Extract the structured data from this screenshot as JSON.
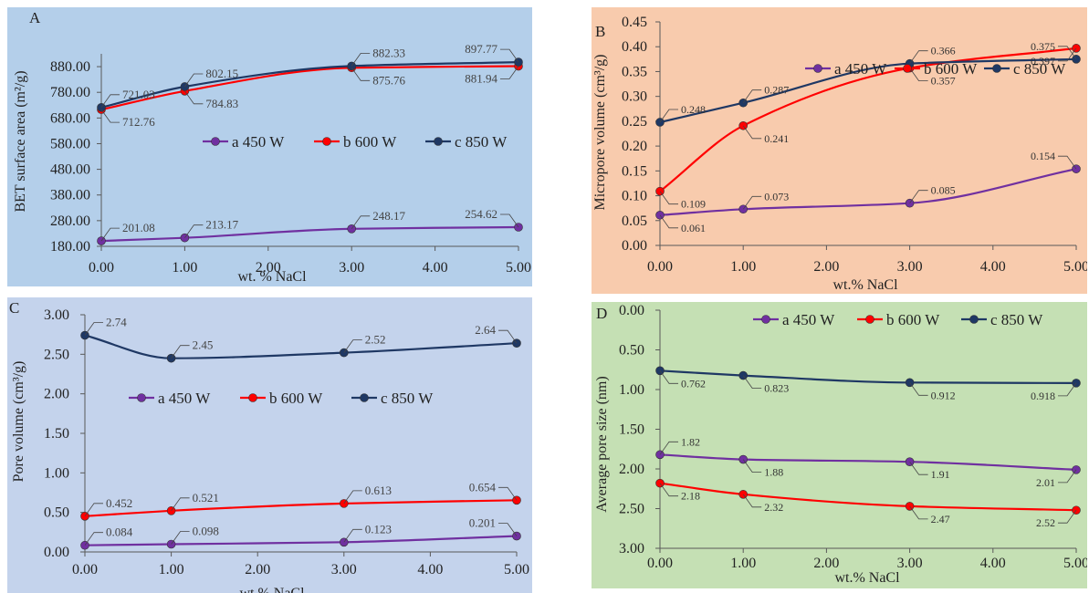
{
  "colors": {
    "a": "#7030a0",
    "b": "#ff0000",
    "c": "#1f3864",
    "axis": "#595959",
    "label_line": "#444444"
  },
  "chart_data": [
    {
      "id": "A",
      "type": "line",
      "panel_letter": "A",
      "bg": "#b4cfea",
      "xlabel": "wt. % NaCl",
      "ylabel": "BET surface area (m²/g)",
      "xlim": [
        0,
        5
      ],
      "ylim": [
        180,
        930
      ],
      "xticks": [
        "0.00",
        "1.00",
        "2.00",
        "3.00",
        "4.00",
        "5.00"
      ],
      "yticks": [
        "180.00",
        "280.00",
        "380.00",
        "480.00",
        "580.00",
        "680.00",
        "780.00",
        "880.00"
      ],
      "legend_position": "middle-right",
      "series": [
        {
          "name": "a 450 W",
          "key": "a",
          "x": [
            0,
            1,
            3,
            5
          ],
          "y": [
            201.08,
            213.17,
            248.17,
            254.62
          ],
          "labels": [
            "201.08",
            "213.17",
            "248.17",
            "254.62"
          ]
        },
        {
          "name": "b 600 W",
          "key": "b",
          "x": [
            0,
            1,
            3,
            5
          ],
          "y": [
            712.76,
            784.83,
            875.76,
            881.94
          ],
          "labels": [
            "712.76",
            "784.83",
            "875.76",
            "881.94"
          ]
        },
        {
          "name": "c 850 W",
          "key": "c",
          "x": [
            0,
            1,
            3,
            5
          ],
          "y": [
            721.03,
            802.15,
            882.33,
            897.77
          ],
          "labels": [
            "721.03",
            "802.15",
            "882.33",
            "897.77"
          ]
        }
      ]
    },
    {
      "id": "B",
      "type": "line",
      "panel_letter": "B",
      "bg": "#f8cbad",
      "xlabel": "wt.% NaCl",
      "ylabel": "Micropore volume (cm³/g)",
      "xlim": [
        0,
        5
      ],
      "ylim": [
        0,
        0.45
      ],
      "xticks": [
        "0.00",
        "1.00",
        "2.00",
        "3.00",
        "4.00",
        "5.00"
      ],
      "yticks": [
        "0.00",
        "0.05",
        "0.10",
        "0.15",
        "0.20",
        "0.25",
        "0.30",
        "0.35",
        "0.40",
        "0.45"
      ],
      "legend_position": "middle",
      "series": [
        {
          "name": "a 450 W",
          "key": "a",
          "x": [
            0,
            1,
            3,
            5
          ],
          "y": [
            0.061,
            0.073,
            0.085,
            0.154
          ],
          "labels": [
            "0.061",
            "0.073",
            "0.085",
            "0.154"
          ]
        },
        {
          "name": "b 600 W",
          "key": "b",
          "x": [
            0,
            1,
            3,
            5
          ],
          "y": [
            0.109,
            0.241,
            0.357,
            0.397
          ],
          "labels": [
            "0.109",
            "0.241",
            "0.357",
            "0.397"
          ]
        },
        {
          "name": "c 850 W",
          "key": "c",
          "x": [
            0,
            1,
            3,
            5
          ],
          "y": [
            0.248,
            0.287,
            0.366,
            0.375
          ],
          "labels": [
            "0.248",
            "0.287",
            "0.366",
            "0.375"
          ]
        }
      ]
    },
    {
      "id": "C",
      "type": "line",
      "panel_letter": "C",
      "bg": "#c4d3ec",
      "xlabel": "wt.% NaCl",
      "ylabel": "Pore volume (cm³/g)",
      "xlim": [
        0,
        5
      ],
      "ylim": [
        0,
        3
      ],
      "xticks": [
        "0.00",
        "1.00",
        "2.00",
        "3.00",
        "4.00",
        "5.00"
      ],
      "yticks": [
        "0.00",
        "0.50",
        "1.00",
        "1.50",
        "2.00",
        "2.50",
        "3.00"
      ],
      "legend_position": "middle",
      "series": [
        {
          "name": "a 450 W",
          "key": "a",
          "x": [
            0,
            1,
            3,
            5
          ],
          "y": [
            0.084,
            0.098,
            0.123,
            0.201
          ],
          "labels": [
            "0.084",
            "0.098",
            "0.123",
            "0.201"
          ]
        },
        {
          "name": "b 600 W",
          "key": "b",
          "x": [
            0,
            1,
            3,
            5
          ],
          "y": [
            0.452,
            0.521,
            0.613,
            0.654
          ],
          "labels": [
            "0.452",
            "0.521",
            "0.613",
            "0.654"
          ]
        },
        {
          "name": "c 850 W",
          "key": "c",
          "x": [
            0,
            1,
            3,
            5
          ],
          "y": [
            2.74,
            2.45,
            2.52,
            2.64
          ],
          "labels": [
            "2.74",
            "2.45",
            "2.52",
            "2.64"
          ]
        }
      ]
    },
    {
      "id": "D",
      "type": "line",
      "panel_letter": "D",
      "bg": "#c5e0b4",
      "xlabel": "wt.% NaCl",
      "ylabel": "Average pore size (nm)",
      "xlim": [
        0,
        5
      ],
      "ylim": [
        0,
        3
      ],
      "y_reversed": true,
      "xticks": [
        "0.00",
        "1.00",
        "2.00",
        "3.00",
        "4.00",
        "5.00"
      ],
      "yticks": [
        "0.00",
        "0.50",
        "1.00",
        "1.50",
        "2.00",
        "2.50",
        "3.00"
      ],
      "legend_position": "top",
      "series": [
        {
          "name": "a 450 W",
          "key": "a",
          "x": [
            0,
            1,
            3,
            5
          ],
          "y": [
            1.82,
            1.88,
            1.91,
            2.01
          ],
          "labels": [
            "1.82",
            "1.88",
            "1.91",
            "2.01"
          ]
        },
        {
          "name": "b 600 W",
          "key": "b",
          "x": [
            0,
            1,
            3,
            5
          ],
          "y": [
            2.18,
            2.32,
            2.47,
            2.52
          ],
          "labels": [
            "2.18",
            "2.32",
            "2.47",
            "2.52"
          ]
        },
        {
          "name": "c 850 W",
          "key": "c",
          "x": [
            0,
            1,
            3,
            5
          ],
          "y": [
            0.762,
            0.823,
            0.912,
            0.918
          ],
          "labels": [
            "0.762",
            "0.823",
            "0.912",
            "0.918"
          ]
        }
      ]
    }
  ]
}
